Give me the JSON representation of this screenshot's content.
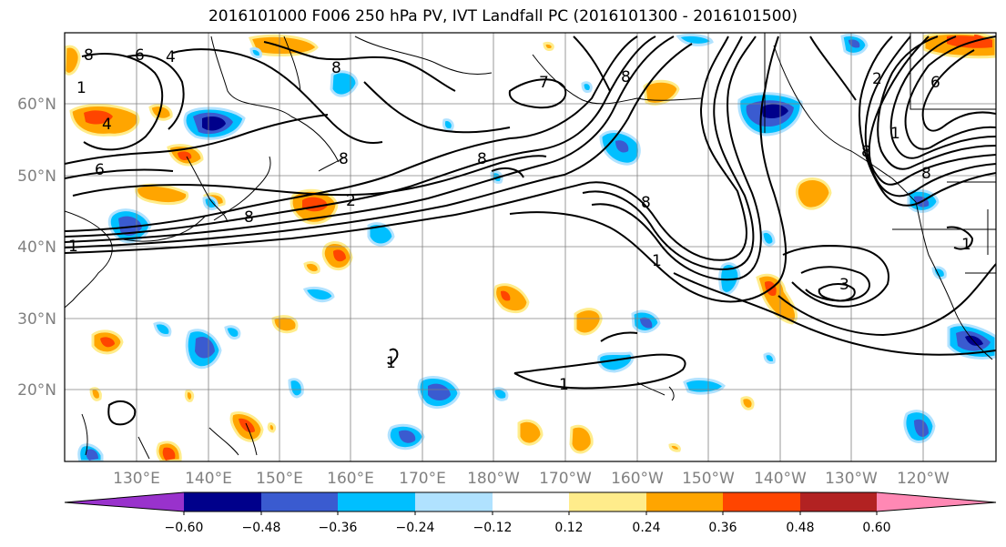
{
  "title": "2016101000 F006 250 hPa PV, IVT Landfall PC (2016101300 - 2016101500)",
  "lat_labels": [
    "60°N",
    "50°N",
    "40°N",
    "30°N",
    "20°N"
  ],
  "lon_labels": [
    "130°E",
    "140°E",
    "150°E",
    "160°E",
    "170°E",
    "180°W",
    "170°W",
    "160°W",
    "150°W",
    "140°W",
    "130°W",
    "120°W"
  ],
  "colorbar": {
    "colors": [
      "#9932cc",
      "#00008b",
      "#3a5bd0",
      "#00bfff",
      "#b0e2ff",
      "#ffffff",
      "#ffec8b",
      "#ffa500",
      "#ff4500",
      "#b22222",
      "#ff88b4"
    ],
    "ticks": [
      "−0.60",
      "−0.48",
      "−0.36",
      "−0.24",
      "−0.12",
      "0.12",
      "0.24",
      "0.36",
      "0.48",
      "0.60"
    ]
  },
  "contour_labels": [
    "8",
    "6",
    "4",
    "1",
    "4",
    "6",
    "1",
    "8",
    "8",
    "8",
    "2",
    "8",
    "8",
    "7",
    "8",
    "1",
    "6",
    "2",
    "1",
    "8",
    "8",
    "3",
    "1",
    "1",
    "1"
  ],
  "colors": {
    "contour": "#000000",
    "grid": "#808080",
    "coast": "#000000"
  }
}
